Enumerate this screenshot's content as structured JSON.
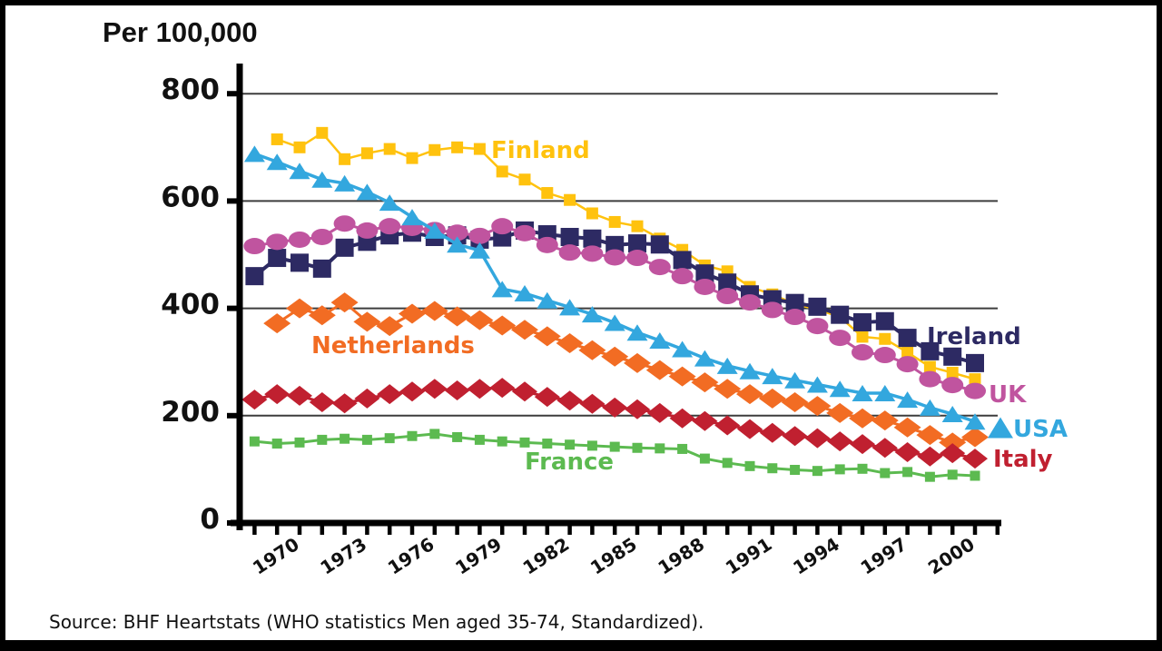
{
  "title": "Per 100,000",
  "source": "Source: BHF Heartstats (WHO statistics Men aged 35-74, Standardized).",
  "chart_data": {
    "type": "line",
    "title": "Per 100,000",
    "xlabel": "",
    "ylabel": "Per 100,000",
    "ylim": [
      0,
      800
    ],
    "yticks": [
      0,
      200,
      400,
      600,
      800
    ],
    "x_range": [
      1968,
      2001
    ],
    "xtick_years": [
      1970,
      1973,
      1976,
      1979,
      1982,
      1985,
      1988,
      1991,
      1994,
      1997,
      2000
    ],
    "grid": "horizontal",
    "legend": "inline-labels",
    "series": [
      {
        "name": "Finland",
        "color": "#FFC20E",
        "marker": "square",
        "start_year": 1969,
        "values": [
          715,
          700,
          727,
          678,
          689,
          697,
          680,
          695,
          700,
          697,
          655,
          640,
          615,
          602,
          577,
          561,
          553,
          530,
          509,
          480,
          469,
          440,
          426,
          408,
          398,
          384,
          347,
          343,
          318,
          291,
          280,
          268
        ]
      },
      {
        "name": "Netherlands",
        "color": "#F26C23",
        "marker": "diamond",
        "start_year": 1969,
        "values": [
          372,
          400,
          387,
          411,
          375,
          367,
          390,
          395,
          385,
          378,
          368,
          360,
          348,
          335,
          322,
          310,
          298,
          285,
          273,
          262,
          250,
          240,
          232,
          225,
          218,
          205,
          195,
          191,
          178,
          164,
          150,
          160
        ]
      },
      {
        "name": "Italy",
        "color": "#C02030",
        "marker": "diamond",
        "start_year": 1968,
        "values": [
          230,
          240,
          237,
          225,
          223,
          232,
          240,
          245,
          250,
          247,
          250,
          252,
          245,
          235,
          228,
          222,
          215,
          212,
          205,
          195,
          190,
          182,
          175,
          168,
          162,
          158,
          152,
          147,
          140,
          132,
          124,
          130,
          120
        ]
      },
      {
        "name": "France",
        "color": "#5CBA50",
        "marker": "square",
        "start_year": 1968,
        "values": [
          152,
          148,
          150,
          155,
          157,
          155,
          158,
          162,
          166,
          160,
          155,
          152,
          150,
          148,
          146,
          144,
          142,
          140,
          139,
          138,
          120,
          112,
          106,
          102,
          99,
          97,
          100,
          101,
          93,
          95,
          86,
          90,
          88
        ]
      },
      {
        "name": "Ireland",
        "color": "#2D2A63",
        "marker": "square",
        "start_year": 1968,
        "values": [
          460,
          494,
          485,
          474,
          513,
          524,
          536,
          541,
          533,
          536,
          528,
          532,
          545,
          538,
          533,
          530,
          518,
          521,
          519,
          490,
          465,
          448,
          426,
          417,
          410,
          403,
          388,
          374,
          376,
          345,
          320,
          310,
          298
        ]
      },
      {
        "name": "UK",
        "color": "#C0549F",
        "marker": "ellipse",
        "start_year": 1968,
        "values": [
          516,
          524,
          528,
          533,
          558,
          545,
          553,
          550,
          546,
          541,
          535,
          553,
          540,
          518,
          504,
          502,
          495,
          494,
          477,
          460,
          440,
          423,
          411,
          397,
          384,
          367,
          345,
          318,
          313,
          296,
          268,
          257,
          246
        ]
      },
      {
        "name": "USA",
        "color": "#33A7DE",
        "marker": "triangle",
        "start_year": 1968,
        "values": [
          688,
          673,
          656,
          640,
          633,
          617,
          597,
          570,
          545,
          519,
          508,
          436,
          428,
          415,
          402,
          389,
          373,
          355,
          340,
          324,
          307,
          293,
          283,
          274,
          266,
          258,
          250,
          242,
          242,
          230,
          215,
          203,
          189
        ]
      }
    ]
  }
}
